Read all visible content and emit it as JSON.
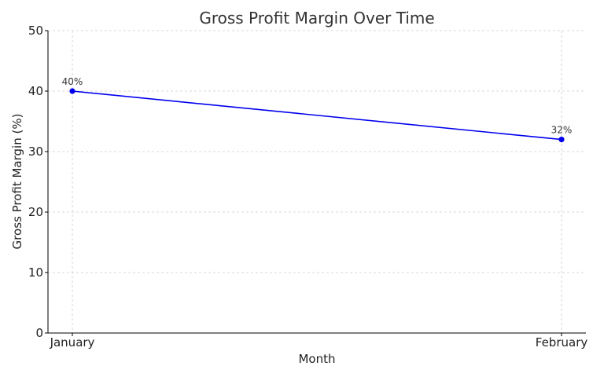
{
  "chart_data": {
    "type": "line",
    "title": "Gross Profit Margin Over Time",
    "xlabel": "Month",
    "ylabel": "Gross Profit Margin (%)",
    "categories": [
      "January",
      "February"
    ],
    "series": [
      {
        "values": [
          40,
          32
        ],
        "color": "#0000ee",
        "data_labels": [
          "40%",
          "32%"
        ]
      }
    ],
    "ylim": [
      0,
      50
    ],
    "yticks": [
      0,
      10,
      20,
      30,
      40,
      50
    ],
    "yticklabels": [
      "0",
      "10",
      "20",
      "30",
      "40",
      "50"
    ],
    "grid": true,
    "marker": "circle"
  }
}
